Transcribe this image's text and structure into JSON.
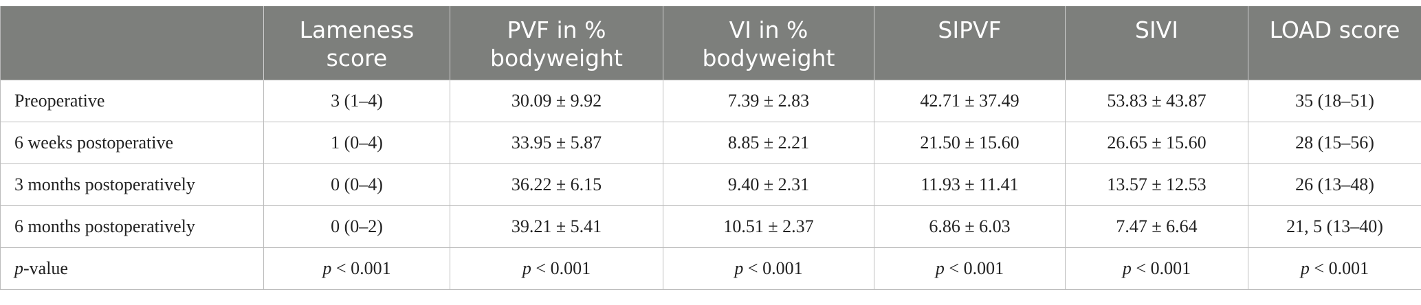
{
  "table": {
    "headers": [
      "",
      "Lameness score",
      "PVF in % bodyweight",
      "VI in % bodyweight",
      "SIPVF",
      "SIVI",
      "LOAD score"
    ],
    "rows": [
      {
        "label": "Preoperative",
        "cells": [
          "3 (1–4)",
          "30.09 ± 9.92",
          "7.39 ± 2.83",
          "42.71 ± 37.49",
          "53.83 ± 43.87",
          "35 (18–51)"
        ]
      },
      {
        "label": "6 weeks postoperative",
        "cells": [
          "1 (0–4)",
          "33.95 ± 5.87",
          "8.85 ± 2.21",
          "21.50 ± 15.60",
          "26.65 ± 15.60",
          "28 (15–56)"
        ]
      },
      {
        "label": "3 months postoperatively",
        "cells": [
          "0 (0–4)",
          "36.22 ± 6.15",
          "9.40 ± 2.31",
          "11.93 ± 11.41",
          "13.57 ± 12.53",
          "26 (13–48)"
        ]
      },
      {
        "label": "6 months postoperatively",
        "cells": [
          "0 (0–2)",
          "39.21 ± 5.41",
          "10.51 ± 2.37",
          "6.86 ± 6.03",
          "7.47 ± 6.64",
          "21, 5 (13–40)"
        ]
      }
    ],
    "pvalue_row": {
      "label_italic": "p",
      "label_rest": "-value",
      "cells": [
        {
          "p": "p",
          "rest": " < 0.001"
        },
        {
          "p": "p",
          "rest": " < 0.001"
        },
        {
          "p": "p",
          "rest": " < 0.001"
        },
        {
          "p": "p",
          "rest": " < 0.001"
        },
        {
          "p": "p",
          "rest": " < 0.001"
        },
        {
          "p": "p",
          "rest": " < 0.001"
        }
      ]
    }
  },
  "colors": {
    "header_bg": "#7d7f7c",
    "header_text": "#ffffff",
    "grid": "#bcbcbc"
  }
}
